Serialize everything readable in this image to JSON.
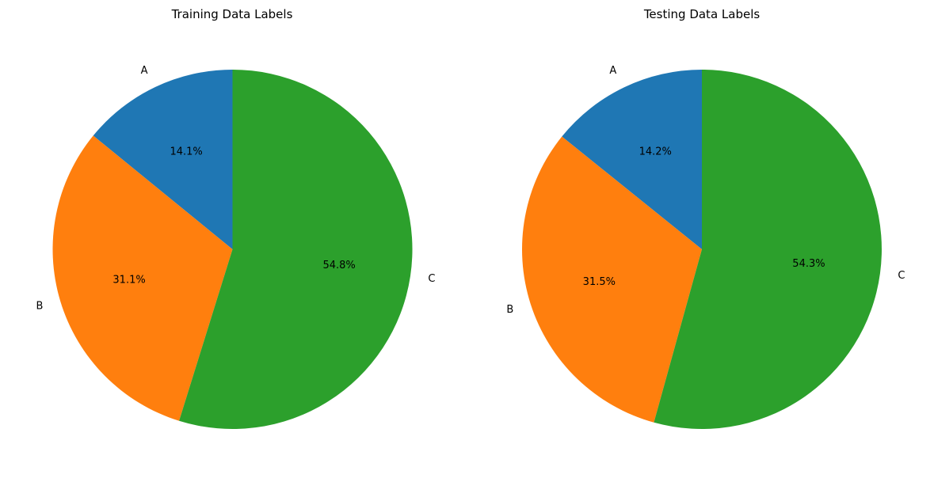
{
  "chart_data": [
    {
      "type": "pie",
      "title": "Training Data Labels",
      "categories": [
        "A",
        "B",
        "C"
      ],
      "values": [
        14.1,
        31.1,
        54.8
      ],
      "percent_labels": [
        "14.1%",
        "31.1%",
        "54.8%"
      ],
      "colors": [
        "#1f77b4",
        "#ff7f0e",
        "#2ca02c"
      ],
      "start_angle": 90,
      "direction": "counterclockwise"
    },
    {
      "type": "pie",
      "title": "Testing Data Labels",
      "categories": [
        "A",
        "B",
        "C"
      ],
      "values": [
        14.2,
        31.5,
        54.3
      ],
      "percent_labels": [
        "14.2%",
        "31.5%",
        "54.3%"
      ],
      "colors": [
        "#1f77b4",
        "#ff7f0e",
        "#2ca02c"
      ],
      "start_angle": 90,
      "direction": "counterclockwise"
    }
  ]
}
